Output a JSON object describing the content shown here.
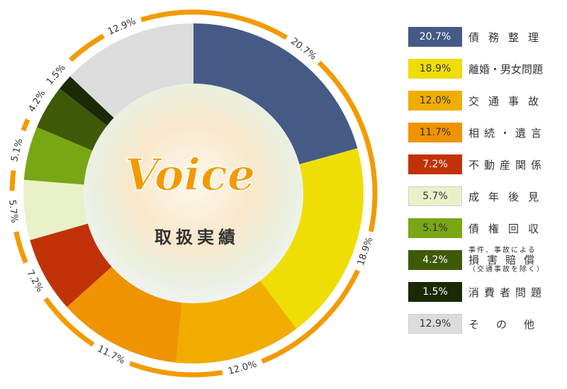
{
  "chart_data": {
    "type": "pie",
    "title": "Voice",
    "subtitle": "取扱実績",
    "slices": [
      {
        "label": "債務整理",
        "value": 20.7,
        "display": "20.7%",
        "color": "#465a86",
        "text_color": "#ffffff"
      },
      {
        "label": "離婚・男女問題",
        "value": 18.9,
        "display": "18.9%",
        "color": "#efdd06",
        "text_color": "#333333"
      },
      {
        "label": "交通事故",
        "value": 12.0,
        "display": "12.0%",
        "color": "#f0ad00",
        "text_color": "#333333"
      },
      {
        "label": "相続・遺言",
        "value": 11.7,
        "display": "11.7%",
        "color": "#ef9300",
        "text_color": "#333333"
      },
      {
        "label": "不動産関係",
        "value": 7.2,
        "display": "7.2%",
        "color": "#c23209",
        "text_color": "#ffffff"
      },
      {
        "label": "成年後見",
        "value": 5.7,
        "display": "5.7%",
        "color": "#e9f1c9",
        "text_color": "#333333"
      },
      {
        "label": "債権回収",
        "value": 5.1,
        "display": "5.1%",
        "color": "#78a615",
        "text_color": "#333333"
      },
      {
        "label": "損害賠償",
        "label_sub_top": "事件、事故による",
        "label_sub_bottom": "（交通事故を除く）",
        "value": 4.2,
        "display": "4.2%",
        "color": "#3e5a08",
        "text_color": "#ffffff"
      },
      {
        "label": "消費者問題",
        "value": 1.5,
        "display": "1.5%",
        "color": "#1a2a04",
        "text_color": "#ffffff"
      },
      {
        "label": "その他",
        "value": 12.9,
        "display": "12.9%",
        "color": "#dcdcdc",
        "text_color": "#333333"
      }
    ],
    "ring_color": "#f39a00",
    "title_color": "#f39a00",
    "legend_placement": "right"
  }
}
